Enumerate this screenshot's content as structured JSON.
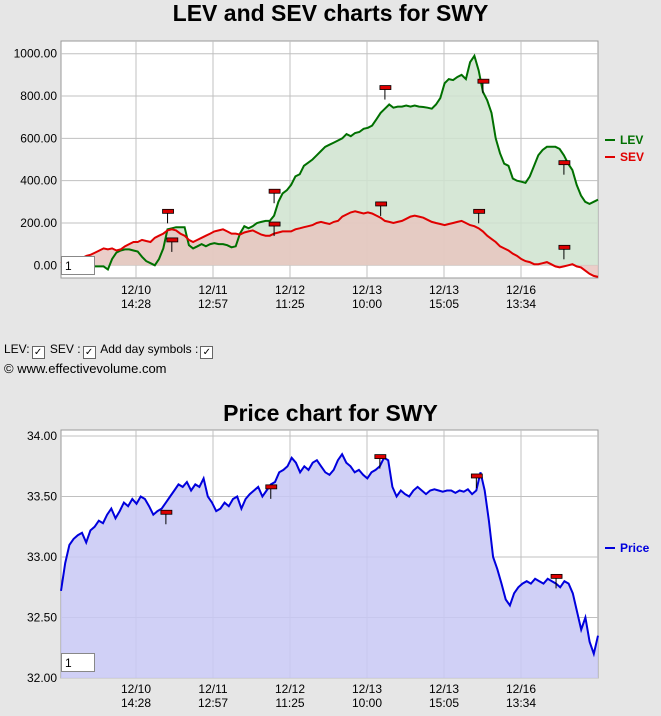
{
  "chart_data": [
    {
      "type": "line",
      "title": "LEV and SEV charts for SWY",
      "ylim": [
        -60,
        1060
      ],
      "yticks": [
        "1000.00",
        "800.00",
        "600.00",
        "400.00",
        "200.00",
        "0.00"
      ],
      "ytick_values": [
        1000,
        800,
        600,
        400,
        200,
        0
      ],
      "xticks": [
        {
          "date": "12/10",
          "time": "14:28"
        },
        {
          "date": "12/11",
          "time": "12:57"
        },
        {
          "date": "12/12",
          "time": "11:25"
        },
        {
          "date": "12/13",
          "time": "10:00"
        },
        {
          "date": "12/13",
          "time": "15:05"
        },
        {
          "date": "12/16",
          "time": "13:34"
        }
      ],
      "series": [
        {
          "name": "LEV",
          "color": "#007000",
          "fill": "#cfe3cf",
          "values": [
            -10,
            -5,
            -5,
            -5,
            -8,
            -5,
            -5,
            -5,
            -5,
            -5,
            -5,
            -20,
            30,
            60,
            70,
            75,
            75,
            70,
            65,
            40,
            20,
            10,
            0,
            30,
            80,
            170,
            175,
            180,
            180,
            180,
            95,
            80,
            90,
            100,
            90,
            100,
            105,
            100,
            100,
            95,
            85,
            90,
            150,
            185,
            175,
            185,
            200,
            205,
            210,
            210,
            235,
            300,
            340,
            355,
            380,
            420,
            430,
            470,
            485,
            500,
            520,
            540,
            560,
            570,
            580,
            590,
            600,
            620,
            610,
            625,
            630,
            645,
            650,
            660,
            690,
            720,
            740,
            760,
            745,
            750,
            750,
            755,
            750,
            755,
            750,
            748,
            745,
            740,
            760,
            790,
            860,
            880,
            875,
            890,
            900,
            880,
            960,
            990,
            920,
            820,
            780,
            720,
            600,
            530,
            480,
            470,
            410,
            400,
            395,
            390,
            420,
            470,
            520,
            545,
            560,
            560,
            560,
            550,
            520,
            480,
            450,
            380,
            330,
            300,
            290,
            300,
            310
          ]
        },
        {
          "name": "SEV",
          "color": "#e00000",
          "fill": "#e8c5c0",
          "values": [
            10,
            20,
            25,
            30,
            30,
            35,
            45,
            50,
            60,
            70,
            80,
            75,
            80,
            70,
            75,
            90,
            100,
            110,
            110,
            120,
            115,
            110,
            130,
            140,
            150,
            165,
            170,
            165,
            150,
            140,
            120,
            110,
            120,
            130,
            140,
            150,
            160,
            165,
            170,
            160,
            150,
            150,
            145,
            155,
            160,
            165,
            155,
            145,
            140,
            140,
            150,
            155,
            160,
            160,
            160,
            170,
            175,
            180,
            185,
            190,
            200,
            205,
            200,
            195,
            205,
            210,
            230,
            240,
            250,
            255,
            250,
            245,
            250,
            245,
            235,
            225,
            210,
            205,
            200,
            205,
            210,
            220,
            230,
            235,
            230,
            225,
            215,
            205,
            200,
            195,
            190,
            195,
            200,
            205,
            210,
            200,
            190,
            185,
            175,
            160,
            140,
            125,
            110,
            90,
            80,
            70,
            55,
            45,
            30,
            20,
            15,
            5,
            5,
            10,
            15,
            5,
            -5,
            -10,
            -5,
            0,
            5,
            -5,
            -10,
            -25,
            -40,
            -50,
            -55
          ]
        }
      ],
      "symbols": [
        {
          "series": "LEV",
          "value": 255,
          "index": 25
        },
        {
          "series": "LEV",
          "value": 120,
          "index": 26
        },
        {
          "series": "LEV",
          "value": 350,
          "index": 50
        },
        {
          "series": "LEV",
          "value": 195,
          "index": 50
        },
        {
          "series": "LEV",
          "value": 840,
          "index": 76
        },
        {
          "series": "LEV",
          "value": 290,
          "index": 75
        },
        {
          "series": "LEV",
          "value": 870,
          "index": 99
        },
        {
          "series": "LEV",
          "value": 255,
          "index": 98
        },
        {
          "series": "LEV",
          "value": 485,
          "index": 118
        },
        {
          "series": "LEV",
          "value": 85,
          "index": 118
        }
      ],
      "legend": [
        "LEV",
        "SEV"
      ],
      "zoom_value": "1"
    },
    {
      "type": "area",
      "title": "Price chart for SWY",
      "ylim": [
        32.0,
        34.05
      ],
      "yticks": [
        "34.00",
        "33.50",
        "33.00",
        "32.50",
        "32.00"
      ],
      "ytick_values": [
        34.0,
        33.5,
        33.0,
        32.5,
        32.0
      ],
      "xticks": [
        {
          "date": "12/10",
          "time": "14:28"
        },
        {
          "date": "12/11",
          "time": "12:57"
        },
        {
          "date": "12/12",
          "time": "11:25"
        },
        {
          "date": "12/13",
          "time": "10:00"
        },
        {
          "date": "12/13",
          "time": "15:05"
        },
        {
          "date": "12/16",
          "time": "13:34"
        }
      ],
      "series": [
        {
          "name": "Price",
          "color": "#0000dd",
          "fill": "#c8c8f5",
          "values": [
            32.72,
            32.95,
            33.1,
            33.15,
            33.18,
            33.2,
            33.12,
            33.22,
            33.25,
            33.3,
            33.28,
            33.35,
            33.4,
            33.32,
            33.38,
            33.45,
            33.42,
            33.48,
            33.44,
            33.5,
            33.48,
            33.42,
            33.35,
            33.38,
            33.4,
            33.45,
            33.5,
            33.55,
            33.6,
            33.58,
            33.62,
            33.55,
            33.6,
            33.58,
            33.65,
            33.5,
            33.45,
            33.38,
            33.4,
            33.45,
            33.42,
            33.48,
            33.5,
            33.4,
            33.48,
            33.52,
            33.55,
            33.58,
            33.5,
            33.55,
            33.6,
            33.62,
            33.7,
            33.72,
            33.75,
            33.82,
            33.78,
            33.7,
            33.75,
            33.72,
            33.78,
            33.8,
            33.75,
            33.7,
            33.68,
            33.72,
            33.8,
            33.85,
            33.78,
            33.75,
            33.7,
            33.72,
            33.68,
            33.65,
            33.7,
            33.72,
            33.75,
            33.82,
            33.8,
            33.58,
            33.5,
            33.55,
            33.52,
            33.5,
            33.55,
            33.58,
            33.55,
            33.52,
            33.55,
            33.56,
            33.55,
            33.54,
            33.55,
            33.55,
            33.53,
            33.55,
            33.54,
            33.56,
            33.52,
            33.55,
            33.7,
            33.55,
            33.3,
            33.0,
            32.9,
            32.78,
            32.65,
            32.6,
            32.7,
            32.75,
            32.78,
            32.8,
            32.78,
            32.82,
            32.8,
            32.78,
            32.82,
            32.8,
            32.78,
            32.75,
            32.8,
            32.78,
            32.7,
            32.55,
            32.4,
            32.5,
            32.3,
            32.2,
            32.35
          ]
        }
      ],
      "symbols": [
        {
          "series": "Price",
          "value": 33.37,
          "index": 25
        },
        {
          "series": "Price",
          "value": 33.58,
          "index": 50
        },
        {
          "series": "Price",
          "value": 33.83,
          "index": 76
        },
        {
          "series": "Price",
          "value": 33.67,
          "index": 99
        },
        {
          "series": "Price",
          "value": 32.84,
          "index": 118
        }
      ],
      "legend": [
        "Price"
      ],
      "zoom_value": "1"
    }
  ],
  "controls": {
    "lev_label": "LEV:",
    "sev_label": "SEV :",
    "day_symbols_label": "Add day symbols :",
    "check_mark": "✓"
  },
  "copyright": "© www.effectivevolume.com",
  "colors": {
    "lev": "#007000",
    "sev": "#e00000",
    "price": "#0000dd",
    "symbol": "#dd0000"
  }
}
